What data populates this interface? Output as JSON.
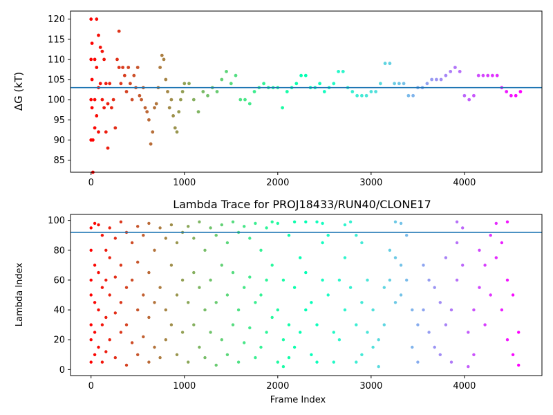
{
  "chart_data": [
    {
      "type": "scatter",
      "title": "",
      "xlabel": "",
      "ylabel": "ΔG (kT)",
      "xlim": [
        -220,
        4830
      ],
      "ylim": [
        82,
        122
      ],
      "xticks": [
        0,
        1000,
        2000,
        3000,
        4000
      ],
      "yticks": [
        85,
        90,
        95,
        100,
        105,
        110,
        115,
        120
      ],
      "hline": 103,
      "hline_color": "#1f77b4",
      "colormap": "rainbow",
      "grid": false,
      "legend": "none",
      "series_desc": "free energy estimate per frame; noisy early (frames 0-300), converges around 100-109 later",
      "points": [
        [
          0,
          120
        ],
        [
          0,
          110
        ],
        [
          0,
          100
        ],
        [
          0,
          90
        ],
        [
          10,
          114
        ],
        [
          10,
          105
        ],
        [
          10,
          98
        ],
        [
          20,
          90
        ],
        [
          20,
          82
        ],
        [
          40,
          110
        ],
        [
          40,
          100
        ],
        [
          40,
          93
        ],
        [
          60,
          120
        ],
        [
          60,
          108
        ],
        [
          60,
          96
        ],
        [
          80,
          116
        ],
        [
          80,
          103
        ],
        [
          80,
          92
        ],
        [
          100,
          113
        ],
        [
          100,
          104
        ],
        [
          120,
          112
        ],
        [
          120,
          100
        ],
        [
          140,
          110
        ],
        [
          140,
          98
        ],
        [
          160,
          104
        ],
        [
          160,
          92
        ],
        [
          180,
          99
        ],
        [
          180,
          88
        ],
        [
          200,
          104
        ],
        [
          220,
          98
        ],
        [
          240,
          100
        ],
        [
          260,
          93
        ],
        [
          280,
          110
        ],
        [
          300,
          117
        ],
        [
          300,
          108
        ],
        [
          320,
          104
        ],
        [
          340,
          108
        ],
        [
          360,
          106
        ],
        [
          380,
          102
        ],
        [
          400,
          108
        ],
        [
          420,
          104
        ],
        [
          440,
          100
        ],
        [
          460,
          106
        ],
        [
          480,
          103
        ],
        [
          500,
          108
        ],
        [
          520,
          101
        ],
        [
          540,
          100
        ],
        [
          560,
          103
        ],
        [
          580,
          98
        ],
        [
          600,
          97
        ],
        [
          620,
          95
        ],
        [
          640,
          89
        ],
        [
          660,
          92
        ],
        [
          680,
          98
        ],
        [
          700,
          99
        ],
        [
          720,
          103
        ],
        [
          740,
          108
        ],
        [
          760,
          111
        ],
        [
          780,
          110
        ],
        [
          800,
          105
        ],
        [
          820,
          102
        ],
        [
          840,
          98
        ],
        [
          860,
          100
        ],
        [
          880,
          96
        ],
        [
          900,
          93
        ],
        [
          920,
          92
        ],
        [
          940,
          97
        ],
        [
          960,
          100
        ],
        [
          980,
          102
        ],
        [
          1000,
          104
        ],
        [
          1050,
          104
        ],
        [
          1100,
          100
        ],
        [
          1150,
          97
        ],
        [
          1200,
          102
        ],
        [
          1250,
          101
        ],
        [
          1300,
          103
        ],
        [
          1350,
          102
        ],
        [
          1400,
          105
        ],
        [
          1450,
          107
        ],
        [
          1500,
          104
        ],
        [
          1550,
          106
        ],
        [
          1600,
          100
        ],
        [
          1650,
          100
        ],
        [
          1700,
          99
        ],
        [
          1750,
          102
        ],
        [
          1800,
          103
        ],
        [
          1850,
          104
        ],
        [
          1900,
          103
        ],
        [
          1950,
          103
        ],
        [
          2000,
          103
        ],
        [
          2050,
          98
        ],
        [
          2100,
          102
        ],
        [
          2150,
          103
        ],
        [
          2200,
          104
        ],
        [
          2250,
          106
        ],
        [
          2300,
          106
        ],
        [
          2350,
          103
        ],
        [
          2400,
          103
        ],
        [
          2450,
          104
        ],
        [
          2500,
          102
        ],
        [
          2550,
          103
        ],
        [
          2600,
          104
        ],
        [
          2650,
          107
        ],
        [
          2700,
          107
        ],
        [
          2750,
          103
        ],
        [
          2800,
          102
        ],
        [
          2850,
          101
        ],
        [
          2900,
          101
        ],
        [
          2950,
          101
        ],
        [
          3000,
          102
        ],
        [
          3050,
          102
        ],
        [
          3100,
          104
        ],
        [
          3150,
          109
        ],
        [
          3200,
          109
        ],
        [
          3250,
          104
        ],
        [
          3300,
          104
        ],
        [
          3350,
          104
        ],
        [
          3400,
          101
        ],
        [
          3450,
          101
        ],
        [
          3500,
          103
        ],
        [
          3550,
          103
        ],
        [
          3600,
          104
        ],
        [
          3650,
          105
        ],
        [
          3700,
          105
        ],
        [
          3750,
          105
        ],
        [
          3800,
          106
        ],
        [
          3850,
          107
        ],
        [
          3900,
          108
        ],
        [
          3950,
          107
        ],
        [
          4000,
          101
        ],
        [
          4050,
          100
        ],
        [
          4100,
          101
        ],
        [
          4150,
          106
        ],
        [
          4200,
          106
        ],
        [
          4250,
          106
        ],
        [
          4300,
          106
        ],
        [
          4350,
          106
        ],
        [
          4400,
          103
        ],
        [
          4450,
          102
        ],
        [
          4500,
          101
        ],
        [
          4550,
          101
        ],
        [
          4600,
          102
        ]
      ]
    },
    {
      "type": "scatter",
      "title": "Lambda Trace for PROJ18433/RUN40/CLONE17",
      "xlabel": "Frame Index",
      "ylabel": "Lambda Index",
      "xlim": [
        -220,
        4830
      ],
      "ylim": [
        -4,
        104
      ],
      "xticks": [
        0,
        1000,
        2000,
        3000,
        4000
      ],
      "yticks": [
        0,
        20,
        40,
        60,
        80,
        100
      ],
      "hline": 92,
      "hline_color": "#1f77b4",
      "colormap": "rainbow",
      "grid": false,
      "legend": "none",
      "series_desc": "lambda index visited per frame; dense scatter across 0-99 over frames 0-4600",
      "points": [
        [
          0,
          95
        ],
        [
          0,
          80
        ],
        [
          0,
          60
        ],
        [
          0,
          50
        ],
        [
          0,
          30
        ],
        [
          0,
          20
        ],
        [
          0,
          5
        ],
        [
          40,
          98
        ],
        [
          40,
          70
        ],
        [
          40,
          45
        ],
        [
          40,
          25
        ],
        [
          40,
          10
        ],
        [
          80,
          97
        ],
        [
          80,
          65
        ],
        [
          80,
          40
        ],
        [
          80,
          15
        ],
        [
          120,
          90
        ],
        [
          120,
          55
        ],
        [
          120,
          30
        ],
        [
          120,
          5
        ],
        [
          160,
          80
        ],
        [
          160,
          60
        ],
        [
          160,
          35
        ],
        [
          160,
          12
        ],
        [
          200,
          95
        ],
        [
          200,
          75
        ],
        [
          200,
          50
        ],
        [
          200,
          20
        ],
        [
          260,
          88
        ],
        [
          260,
          62
        ],
        [
          260,
          38
        ],
        [
          260,
          8
        ],
        [
          320,
          99
        ],
        [
          320,
          70
        ],
        [
          320,
          45
        ],
        [
          320,
          25
        ],
        [
          380,
          92
        ],
        [
          380,
          55
        ],
        [
          380,
          30
        ],
        [
          380,
          3
        ],
        [
          440,
          85
        ],
        [
          440,
          60
        ],
        [
          440,
          18
        ],
        [
          500,
          96
        ],
        [
          500,
          72
        ],
        [
          500,
          40
        ],
        [
          500,
          10
        ],
        [
          560,
          90
        ],
        [
          560,
          50
        ],
        [
          560,
          22
        ],
        [
          620,
          98
        ],
        [
          620,
          65
        ],
        [
          620,
          35
        ],
        [
          620,
          5
        ],
        [
          680,
          80
        ],
        [
          680,
          45
        ],
        [
          680,
          15
        ],
        [
          740,
          95
        ],
        [
          740,
          55
        ],
        [
          740,
          8
        ],
        [
          800,
          88
        ],
        [
          800,
          40
        ],
        [
          800,
          20
        ],
        [
          860,
          97
        ],
        [
          860,
          70
        ],
        [
          860,
          30
        ],
        [
          920,
          85
        ],
        [
          920,
          50
        ],
        [
          920,
          10
        ],
        [
          980,
          92
        ],
        [
          980,
          60
        ],
        [
          980,
          25
        ],
        [
          1040,
          96
        ],
        [
          1040,
          45
        ],
        [
          1040,
          5
        ],
        [
          1100,
          88
        ],
        [
          1100,
          65
        ],
        [
          1100,
          30
        ],
        [
          1160,
          99
        ],
        [
          1160,
          55
        ],
        [
          1160,
          15
        ],
        [
          1220,
          80
        ],
        [
          1220,
          40
        ],
        [
          1220,
          8
        ],
        [
          1280,
          95
        ],
        [
          1280,
          60
        ],
        [
          1280,
          25
        ],
        [
          1340,
          90
        ],
        [
          1340,
          45
        ],
        [
          1340,
          3
        ],
        [
          1400,
          97
        ],
        [
          1400,
          70
        ],
        [
          1400,
          20
        ],
        [
          1460,
          85
        ],
        [
          1460,
          50
        ],
        [
          1460,
          10
        ],
        [
          1520,
          99
        ],
        [
          1520,
          65
        ],
        [
          1520,
          30
        ],
        [
          1580,
          92
        ],
        [
          1580,
          40
        ],
        [
          1580,
          5
        ],
        [
          1640,
          96
        ],
        [
          1640,
          55
        ],
        [
          1640,
          18
        ],
        [
          1700,
          88
        ],
        [
          1700,
          62
        ],
        [
          1700,
          28
        ],
        [
          1760,
          98
        ],
        [
          1760,
          45
        ],
        [
          1760,
          8
        ],
        [
          1820,
          80
        ],
        [
          1820,
          50
        ],
        [
          1820,
          15
        ],
        [
          1880,
          95
        ],
        [
          1880,
          60
        ],
        [
          1880,
          25
        ],
        [
          1940,
          99
        ],
        [
          1940,
          70
        ],
        [
          1940,
          35
        ],
        [
          2000,
          98
        ],
        [
          2000,
          40
        ],
        [
          2000,
          5
        ],
        [
          2060,
          60
        ],
        [
          2060,
          20
        ],
        [
          2060,
          2
        ],
        [
          2120,
          90
        ],
        [
          2120,
          30
        ],
        [
          2120,
          8
        ],
        [
          2180,
          99
        ],
        [
          2180,
          55
        ],
        [
          2180,
          15
        ],
        [
          2240,
          75
        ],
        [
          2240,
          25
        ],
        [
          2300,
          99
        ],
        [
          2300,
          65
        ],
        [
          2300,
          40
        ],
        [
          2360,
          45
        ],
        [
          2360,
          10
        ],
        [
          2420,
          99
        ],
        [
          2420,
          30
        ],
        [
          2420,
          5
        ],
        [
          2480,
          98
        ],
        [
          2480,
          85
        ],
        [
          2480,
          60
        ],
        [
          2540,
          90
        ],
        [
          2540,
          50
        ],
        [
          2600,
          25
        ],
        [
          2600,
          5
        ],
        [
          2660,
          60
        ],
        [
          2660,
          20
        ],
        [
          2720,
          97
        ],
        [
          2720,
          75
        ],
        [
          2720,
          40
        ],
        [
          2780,
          99
        ],
        [
          2780,
          55
        ],
        [
          2840,
          90
        ],
        [
          2840,
          30
        ],
        [
          2840,
          5
        ],
        [
          2900,
          85
        ],
        [
          2900,
          45
        ],
        [
          2900,
          10
        ],
        [
          2960,
          60
        ],
        [
          2960,
          25
        ],
        [
          3020,
          40
        ],
        [
          3020,
          15
        ],
        [
          3080,
          20
        ],
        [
          3080,
          2
        ],
        [
          3140,
          55
        ],
        [
          3140,
          30
        ],
        [
          3200,
          80
        ],
        [
          3200,
          60
        ],
        [
          3260,
          99
        ],
        [
          3260,
          75
        ],
        [
          3260,
          45
        ],
        [
          3320,
          98
        ],
        [
          3320,
          70
        ],
        [
          3320,
          50
        ],
        [
          3380,
          90
        ],
        [
          3380,
          60
        ],
        [
          3440,
          40
        ],
        [
          3440,
          15
        ],
        [
          3500,
          30
        ],
        [
          3500,
          5
        ],
        [
          3560,
          70
        ],
        [
          3560,
          40
        ],
        [
          3620,
          60
        ],
        [
          3620,
          25
        ],
        [
          3680,
          55
        ],
        [
          3680,
          15
        ],
        [
          3740,
          45
        ],
        [
          3740,
          10
        ],
        [
          3800,
          75
        ],
        [
          3800,
          30
        ],
        [
          3860,
          40
        ],
        [
          3860,
          5
        ],
        [
          3920,
          99
        ],
        [
          3920,
          85
        ],
        [
          3920,
          60
        ],
        [
          3980,
          95
        ],
        [
          3980,
          70
        ],
        [
          4040,
          25
        ],
        [
          4040,
          2
        ],
        [
          4100,
          40
        ],
        [
          4100,
          10
        ],
        [
          4160,
          80
        ],
        [
          4160,
          55
        ],
        [
          4220,
          70
        ],
        [
          4220,
          30
        ],
        [
          4280,
          90
        ],
        [
          4280,
          50
        ],
        [
          4340,
          98
        ],
        [
          4340,
          75
        ],
        [
          4400,
          85
        ],
        [
          4400,
          40
        ],
        [
          4460,
          99
        ],
        [
          4460,
          60
        ],
        [
          4460,
          20
        ],
        [
          4520,
          50
        ],
        [
          4520,
          10
        ],
        [
          4580,
          25
        ],
        [
          4580,
          3
        ]
      ]
    }
  ]
}
